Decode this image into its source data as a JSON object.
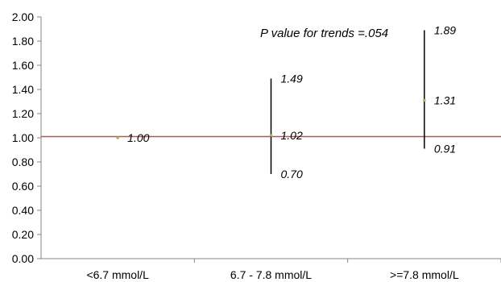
{
  "chart_data": {
    "type": "scatter",
    "title": "",
    "xlabel": "",
    "ylabel": "",
    "ylim": [
      0,
      2
    ],
    "ytick_step": 0.2,
    "yticks": [
      "0.00",
      "0.20",
      "0.40",
      "0.60",
      "0.80",
      "1.00",
      "1.20",
      "1.40",
      "1.60",
      "1.80",
      "2.00"
    ],
    "grid": false,
    "legend": "none",
    "categories": [
      "<6.7 mmol/L",
      "6.7 - 7.8 mmol/L",
      ">=7.8 mmol/L"
    ],
    "series": [
      {
        "values": [
          1.0,
          1.02,
          1.31
        ],
        "lower": [
          null,
          0.7,
          0.91
        ],
        "upper": [
          null,
          1.49,
          1.89
        ],
        "value_labels": [
          "1.00",
          "1.02",
          "1.31"
        ],
        "lower_labels": [
          "",
          "0.70",
          "0.91"
        ],
        "upper_labels": [
          "",
          "1.49",
          "1.89"
        ]
      }
    ],
    "reference_line": {
      "y": 1.01,
      "color": "#c0504d"
    },
    "annotation": "P value for trends =.054",
    "colors": {
      "axis": "#868686",
      "errorbar": "#000000",
      "marker": "#9bbb59"
    }
  }
}
